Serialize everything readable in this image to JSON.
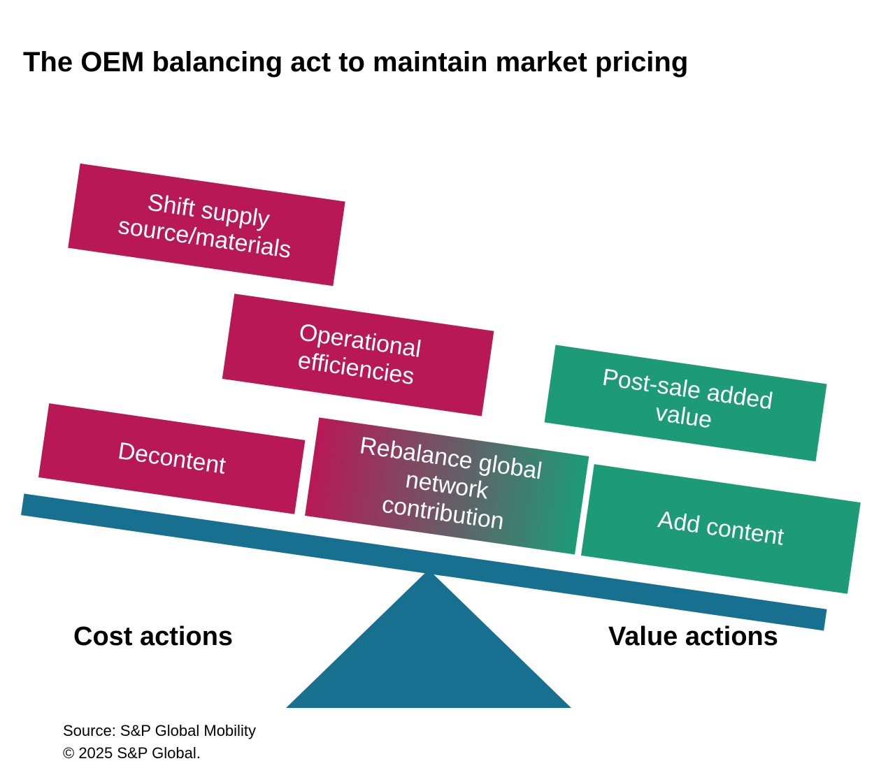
{
  "title": "The OEM balancing act to maintain market pricing",
  "colors": {
    "cost_action": "#B81956",
    "value_action": "#1D9B76",
    "beam_and_fulcrum": "#17708F",
    "box_text": "#FFFFFF"
  },
  "diagram": {
    "type": "seesaw-balance",
    "tilt_degrees": 8.2,
    "cost_boxes": {
      "shift_supply": "Shift supply\nsource/materials",
      "operational": "Operational\nefficiencies",
      "decontent": "Decontent"
    },
    "mixed_box": {
      "rebalance": "Rebalance global\nnetwork\ncontribution"
    },
    "value_boxes": {
      "post_sale": "Post-sale added\nvalue",
      "add_content": "Add content"
    }
  },
  "axis_labels": {
    "cost": "Cost actions",
    "value": "Value actions"
  },
  "footer": {
    "source": "Source: S&P Global Mobility",
    "copyright": "© 2025 S&P Global."
  }
}
